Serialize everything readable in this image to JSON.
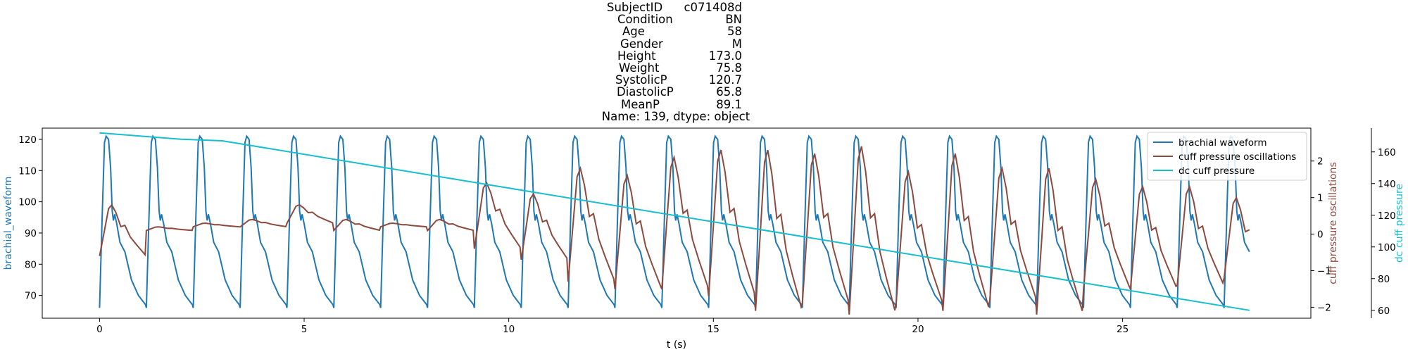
{
  "title_rows": [
    {
      "key": "SubjectID",
      "value": "c071408d"
    },
    {
      "key": "Condition",
      "value": "BN"
    },
    {
      "key": "Age",
      "value": "58"
    },
    {
      "key": "Gender",
      "value": "M"
    },
    {
      "key": "Height",
      "value": "173.0"
    },
    {
      "key": "Weight",
      "value": "75.8"
    },
    {
      "key": "SystolicP",
      "value": "120.7"
    },
    {
      "key": "DiastolicP",
      "value": "65.8"
    },
    {
      "key": "MeanP",
      "value": "89.1"
    }
  ],
  "title_footer": "Name: 139, dtype: object",
  "chart_data": {
    "type": "line",
    "xlabel": "t (s)",
    "xlim": [
      -1.4,
      29.6
    ],
    "xticks": [
      0,
      5,
      10,
      15,
      20,
      25
    ],
    "left_axis": {
      "label": "brachial_waveform",
      "color": "#1f77b4",
      "ylim": [
        62.7,
        123.6
      ],
      "ticks": [
        70,
        80,
        90,
        100,
        110,
        120
      ]
    },
    "right_axis_1": {
      "label": "cuff pressure oscillations",
      "color": "#8c4a3f",
      "ylim": [
        -2.3,
        2.9
      ],
      "ticks": [
        -2,
        -1,
        0,
        1,
        2
      ]
    },
    "right_axis_2": {
      "label": "dc cuff pressure",
      "color": "#17becf",
      "ylim": [
        55,
        175
      ],
      "ticks": [
        60,
        80,
        100,
        120,
        140,
        160
      ]
    },
    "legend": {
      "position": "top-right",
      "entries": [
        "brachial waveform",
        "cuff pressure oscillations",
        "dc cuff pressure"
      ]
    },
    "series": [
      {
        "name": "brachial waveform",
        "color": "#1f77b4",
        "axis": "left",
        "x_start": 0,
        "x_end": 28.1,
        "beat_period_s": 1.145,
        "upstroke_s": 0.12,
        "diastolic_level": 66,
        "systolic_level": 121,
        "dicrotic_notch_level": 95
      },
      {
        "name": "cuff pressure oscillations",
        "color": "#8c4a3f",
        "axis": "right_axis_1",
        "x_start": 0,
        "x_end": 28.1,
        "beat_period_s": 1.145,
        "peaks": [
          0.8,
          0.2,
          0.3,
          0.4,
          0.8,
          0.4,
          0.3,
          0.4,
          1.4,
          1.1,
          1.8,
          1.6,
          2.1,
          2.3,
          2.3,
          2.2,
          2.4,
          1.7,
          2.2,
          1.8,
          1.8,
          1.5,
          1.3,
          1.3,
          1.0,
          0.6,
          0.4
        ],
        "troughs": [
          -0.6,
          0.1,
          0.2,
          0.2,
          0.3,
          0.1,
          0.2,
          0.1,
          -0.4,
          -0.7,
          -1.3,
          -1.5,
          -1.5,
          -1.7,
          -2.1,
          -1.9,
          -2.2,
          -1.9,
          -2.1,
          -1.8,
          -2.2,
          -1.5,
          -1.5,
          -1.4,
          -1.2,
          -0.9,
          -0.8
        ]
      },
      {
        "name": "dc cuff pressure",
        "color": "#17becf",
        "axis": "right_axis_2",
        "x": [
          0,
          2.0,
          3.0,
          28.1
        ],
        "y": [
          172,
          168,
          167,
          60
        ]
      }
    ]
  }
}
